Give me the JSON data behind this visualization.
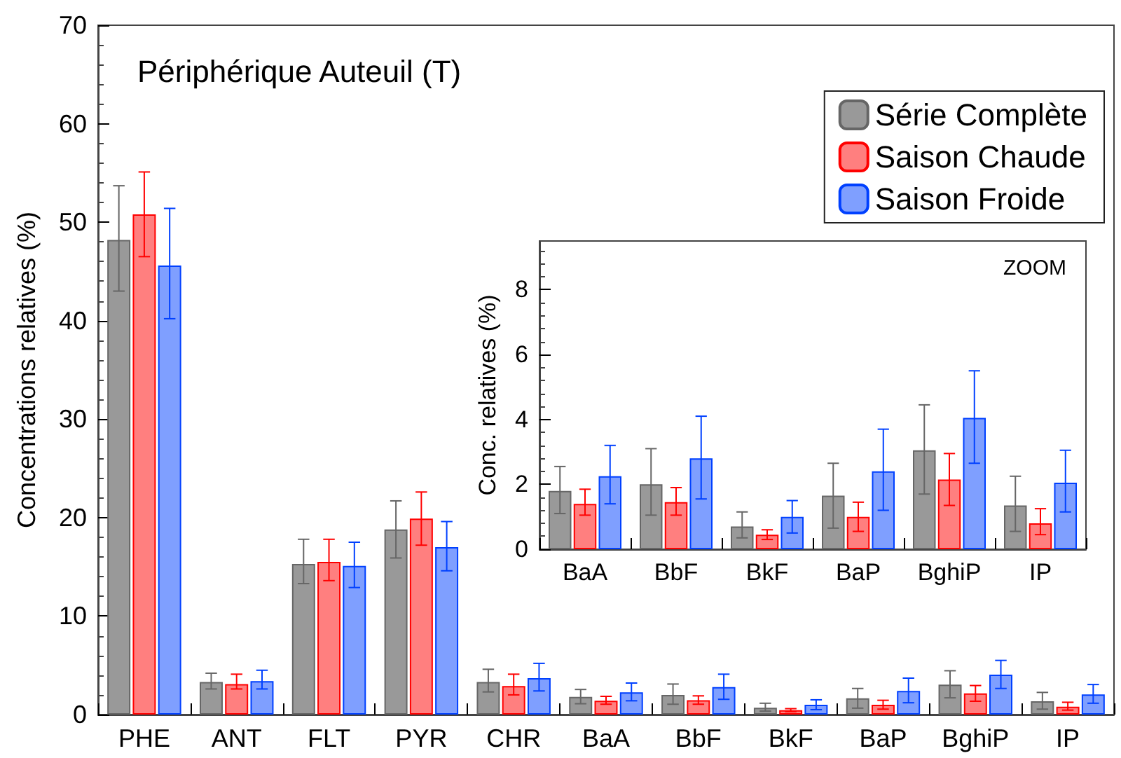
{
  "chart_data": [
    {
      "type": "bar",
      "title": "Périphérique Auteuil (T)",
      "ylabel": "Concentrations relatives (%)",
      "categories": [
        "PHE",
        "ANT",
        "FLT",
        "PYR",
        "CHR",
        "BaA",
        "BbF",
        "BkF",
        "BaP",
        "BghiP",
        "IP"
      ],
      "series": [
        {
          "name": "Série Complète",
          "color": "#999999",
          "values": [
            48.2,
            3.3,
            15.3,
            18.8,
            3.3,
            1.8,
            2.0,
            0.7,
            1.65,
            3.05,
            1.35
          ],
          "errors": [
            [
              43.0,
              53.7
            ],
            [
              2.6,
              4.2
            ],
            [
              13.3,
              17.8
            ],
            [
              15.9,
              21.7
            ],
            [
              2.3,
              4.6
            ],
            [
              1.1,
              2.55
            ],
            [
              1.05,
              3.1
            ],
            [
              0.35,
              1.15
            ],
            [
              0.65,
              2.65
            ],
            [
              1.7,
              4.45
            ],
            [
              0.55,
              2.25
            ]
          ]
        },
        {
          "name": "Saison Chaude",
          "color": "#ff7f7f",
          "values": [
            50.8,
            3.1,
            15.5,
            19.9,
            2.9,
            1.4,
            1.45,
            0.45,
            1.0,
            2.15,
            0.8
          ],
          "errors": [
            [
              46.5,
              55.1
            ],
            [
              2.6,
              4.1
            ],
            [
              13.6,
              17.8
            ],
            [
              17.2,
              22.6
            ],
            [
              2.0,
              4.1
            ],
            [
              1.05,
              1.85
            ],
            [
              1.05,
              1.9
            ],
            [
              0.3,
              0.6
            ],
            [
              0.55,
              1.45
            ],
            [
              1.35,
              2.95
            ],
            [
              0.45,
              1.25
            ]
          ]
        },
        {
          "name": "Saison Froide",
          "color": "#7f9fff",
          "values": [
            45.6,
            3.4,
            15.1,
            17.0,
            3.7,
            2.25,
            2.8,
            1.0,
            2.4,
            4.05,
            2.05
          ],
          "errors": [
            [
              40.2,
              51.4
            ],
            [
              2.6,
              4.5
            ],
            [
              12.9,
              17.5
            ],
            [
              14.6,
              19.6
            ],
            [
              2.4,
              5.2
            ],
            [
              1.4,
              3.2
            ],
            [
              1.55,
              4.1
            ],
            [
              0.5,
              1.5
            ],
            [
              1.2,
              3.7
            ],
            [
              2.65,
              5.5
            ],
            [
              1.15,
              3.05
            ]
          ]
        }
      ],
      "ylim": [
        0,
        70
      ],
      "yticks": [
        0,
        10,
        20,
        30,
        40,
        50,
        60,
        70
      ],
      "legend": "top right",
      "grid": false
    },
    {
      "type": "bar",
      "ylabel": "Conc. relatives (%)",
      "annotations": [
        "ZOOM"
      ],
      "categories": [
        "BaA",
        "BbF",
        "BkF",
        "BaP",
        "BghiP",
        "IP"
      ],
      "series": [
        {
          "color": "#999999",
          "values": [
            1.8,
            2.0,
            0.7,
            1.65,
            3.05,
            1.35
          ],
          "errors": [
            [
              1.1,
              2.55
            ],
            [
              1.05,
              3.1
            ],
            [
              0.35,
              1.15
            ],
            [
              0.65,
              2.65
            ],
            [
              1.7,
              4.45
            ],
            [
              0.55,
              2.25
            ]
          ]
        },
        {
          "color": "#ff7f7f",
          "values": [
            1.4,
            1.45,
            0.45,
            1.0,
            2.15,
            0.8
          ],
          "errors": [
            [
              1.05,
              1.85
            ],
            [
              1.05,
              1.9
            ],
            [
              0.3,
              0.6
            ],
            [
              0.55,
              1.45
            ],
            [
              1.35,
              2.95
            ],
            [
              0.45,
              1.25
            ]
          ]
        },
        {
          "color": "#7f9fff",
          "values": [
            2.25,
            2.8,
            1.0,
            2.4,
            4.05,
            2.05
          ],
          "errors": [
            [
              1.4,
              3.2
            ],
            [
              1.55,
              4.1
            ],
            [
              0.5,
              1.5
            ],
            [
              1.2,
              3.7
            ],
            [
              2.65,
              5.5
            ],
            [
              1.15,
              3.05
            ]
          ]
        }
      ],
      "ylim": [
        0,
        9.5
      ],
      "yticks": [
        0,
        2,
        4,
        6,
        8
      ],
      "legend": false,
      "grid": false
    }
  ]
}
